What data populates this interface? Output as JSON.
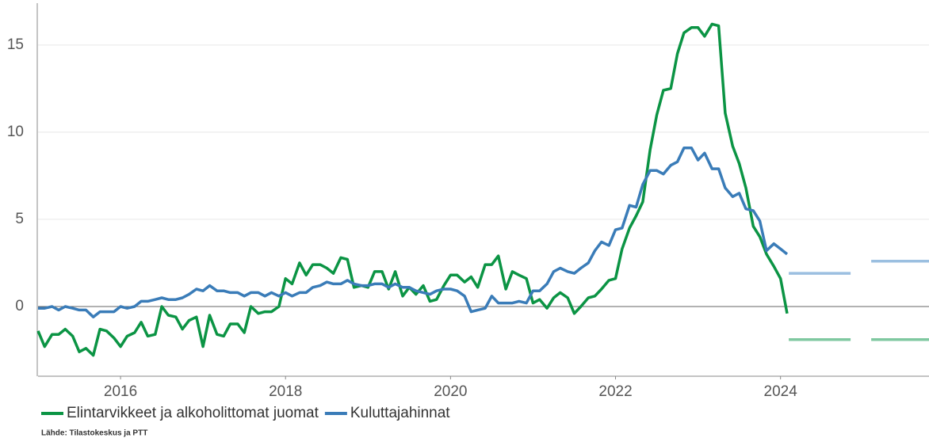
{
  "chart_data": {
    "type": "line",
    "source": "Lähde: Tilastokeskus ja PTT",
    "x": [
      2015,
      2015.08,
      2015.17,
      2015.25,
      2015.33,
      2015.42,
      2015.5,
      2015.58,
      2015.67,
      2015.75,
      2015.83,
      2015.92,
      2016,
      2016.08,
      2016.17,
      2016.25,
      2016.33,
      2016.42,
      2016.5,
      2016.58,
      2016.67,
      2016.75,
      2016.83,
      2016.92,
      2017,
      2017.08,
      2017.17,
      2017.25,
      2017.33,
      2017.42,
      2017.5,
      2017.58,
      2017.67,
      2017.75,
      2017.83,
      2017.92,
      2018,
      2018.08,
      2018.17,
      2018.25,
      2018.33,
      2018.42,
      2018.5,
      2018.58,
      2018.67,
      2018.75,
      2018.83,
      2018.92,
      2019,
      2019.08,
      2019.17,
      2019.25,
      2019.33,
      2019.42,
      2019.5,
      2019.58,
      2019.67,
      2019.75,
      2019.83,
      2019.92,
      2020,
      2020.08,
      2020.17,
      2020.25,
      2020.33,
      2020.42,
      2020.5,
      2020.58,
      2020.67,
      2020.75,
      2020.83,
      2020.92,
      2021,
      2021.08,
      2021.17,
      2021.25,
      2021.33,
      2021.42,
      2021.5,
      2021.58,
      2021.67,
      2021.75,
      2021.83,
      2021.92,
      2022,
      2022.08,
      2022.17,
      2022.25,
      2022.33,
      2022.42,
      2022.5,
      2022.58,
      2022.67,
      2022.75,
      2022.83,
      2022.92,
      2023,
      2023.08,
      2023.17,
      2023.25,
      2023.33,
      2023.42,
      2023.5,
      2023.58,
      2023.67,
      2023.75,
      2023.83,
      2023.92,
      2024,
      2024.08
    ],
    "series": [
      {
        "name": "Elintarvikkeet ja alkoholittomat juomat",
        "color": "#0b9444",
        "values": [
          -1.4,
          -2.3,
          -1.6,
          -1.6,
          -1.3,
          -1.7,
          -2.6,
          -2.4,
          -2.8,
          -1.3,
          -1.4,
          -1.8,
          -2.3,
          -1.7,
          -1.5,
          -0.9,
          -1.7,
          -1.6,
          0.0,
          -0.5,
          -0.6,
          -1.3,
          -0.8,
          -0.6,
          -2.3,
          -0.5,
          -1.6,
          -1.7,
          -1.0,
          -1.0,
          -1.5,
          0.0,
          -0.4,
          -0.3,
          -0.3,
          0.0,
          1.6,
          1.3,
          2.5,
          1.8,
          2.4,
          2.4,
          2.2,
          1.9,
          2.8,
          2.7,
          1.1,
          1.2,
          1.1,
          2.0,
          2.0,
          1.0,
          2.0,
          0.6,
          1.1,
          0.7,
          1.2,
          0.3,
          0.4,
          1.2,
          1.8,
          1.8,
          1.4,
          1.7,
          1.1,
          2.4,
          2.4,
          2.9,
          1.0,
          2.0,
          1.8,
          1.6,
          0.2,
          0.4,
          -0.1,
          0.5,
          0.8,
          0.5,
          -0.4,
          0.0,
          0.5,
          0.6,
          1.0,
          1.5,
          1.6,
          3.3,
          4.5,
          5.2,
          6.0,
          9.0,
          11.0,
          12.4,
          12.5,
          14.5,
          15.7,
          16.0,
          16.0,
          15.5,
          16.2,
          16.1,
          11.1,
          9.2,
          8.2,
          6.8,
          4.6,
          4.0,
          3.0,
          2.3,
          1.6,
          -0.4
        ],
        "forecast_color": "#7fc8a0",
        "forecasts": [
          {
            "x": [
              2024.1,
              2024.85
            ],
            "values": [
              -1.9,
              -1.9
            ]
          },
          {
            "x": [
              2025.1,
              2025.8
            ],
            "values": [
              -1.9,
              -1.9
            ]
          }
        ]
      },
      {
        "name": "Kuluttajahinnat",
        "color": "#3a7cb8",
        "values": [
          -0.1,
          -0.1,
          0.0,
          -0.2,
          0.0,
          -0.1,
          -0.2,
          -0.2,
          -0.6,
          -0.3,
          -0.3,
          -0.3,
          0.0,
          -0.1,
          0.0,
          0.3,
          0.3,
          0.4,
          0.5,
          0.4,
          0.4,
          0.5,
          0.7,
          1.0,
          0.9,
          1.2,
          0.9,
          0.9,
          0.8,
          0.8,
          0.6,
          0.8,
          0.8,
          0.6,
          0.8,
          0.6,
          0.8,
          0.6,
          0.8,
          0.8,
          1.1,
          1.2,
          1.4,
          1.3,
          1.3,
          1.5,
          1.3,
          1.2,
          1.2,
          1.3,
          1.3,
          1.1,
          1.3,
          1.1,
          1.1,
          0.9,
          0.8,
          0.7,
          0.9,
          1.0,
          1.0,
          0.9,
          0.6,
          -0.3,
          -0.2,
          -0.1,
          0.6,
          0.2,
          0.2,
          0.2,
          0.3,
          0.2,
          0.9,
          0.9,
          1.3,
          2.0,
          2.2,
          2.0,
          1.9,
          2.2,
          2.5,
          3.2,
          3.7,
          3.5,
          4.4,
          4.5,
          5.8,
          5.7,
          7.0,
          7.8,
          7.8,
          7.6,
          8.1,
          8.3,
          9.1,
          9.1,
          8.4,
          8.8,
          7.9,
          7.9,
          6.8,
          6.3,
          6.5,
          5.6,
          5.5,
          4.9,
          3.2,
          3.6,
          3.3,
          3.0
        ],
        "forecast_color": "#9bbfe0",
        "forecasts": [
          {
            "x": [
              2024.1,
              2024.85
            ],
            "values": [
              1.9,
              1.9
            ]
          },
          {
            "x": [
              2025.1,
              2025.8
            ],
            "values": [
              2.6,
              2.6
            ]
          }
        ]
      }
    ],
    "xlim": [
      2015,
      2025.8
    ],
    "xticks": [
      2016,
      2018,
      2020,
      2022,
      2024
    ],
    "ylim": [
      -4,
      17.4
    ],
    "yticks": [
      0,
      5,
      10,
      15
    ],
    "grid": true
  }
}
